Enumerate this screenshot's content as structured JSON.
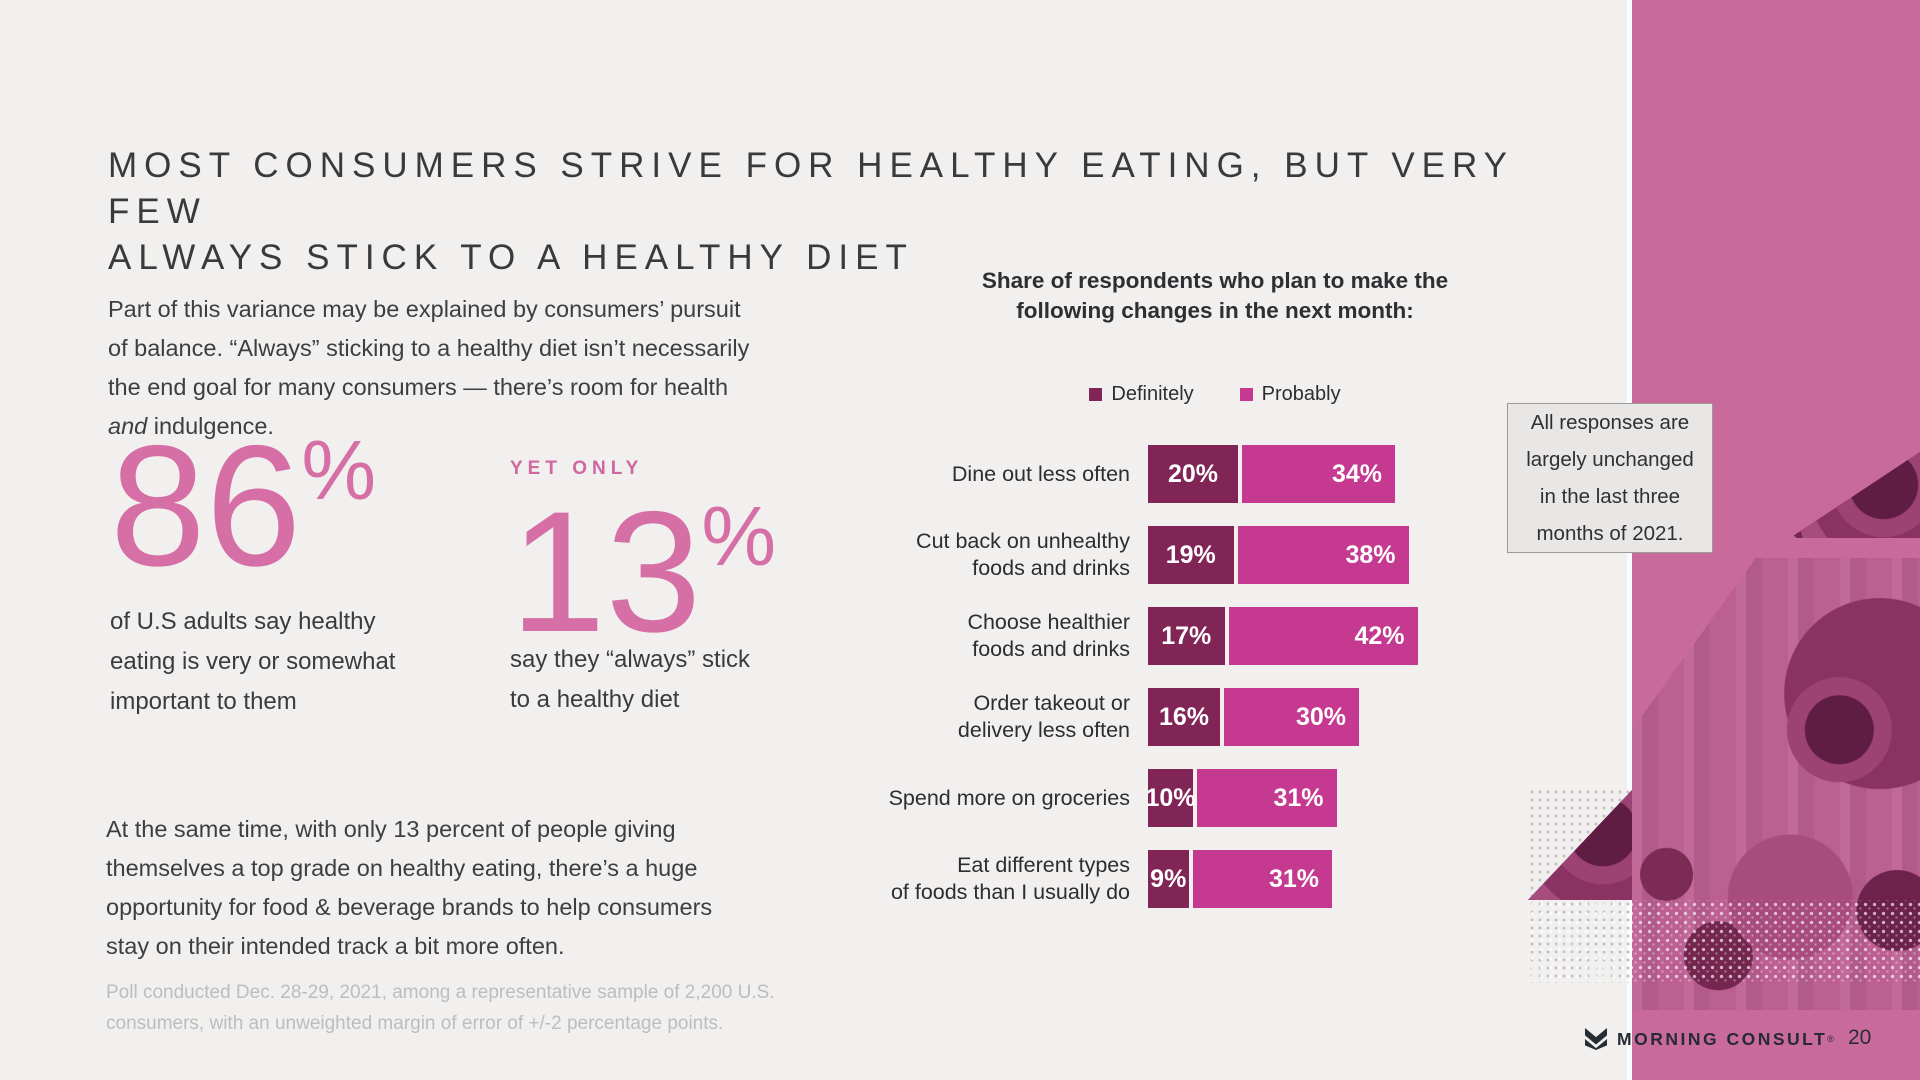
{
  "page": {
    "title_line1": "MOST CONSUMERS STRIVE FOR HEALTHY EATING, BUT VERY FEW",
    "title_line2": "ALWAYS STICK TO A HEALTHY DIET",
    "brand": "MORNING CONSULT",
    "brand_mark": "®",
    "page_number": "20"
  },
  "left_column": {
    "intro_pre": "Part of this variance may be explained by consumers’ pursuit\nof balance. “Always” sticking to a healthy diet isn’t necessarily\nthe end goal for many consumers — there’s room for health\n",
    "intro_italic": "and",
    "intro_post": " indulgence.",
    "closing": "At the same time, with only 13 percent of people giving\nthemselves a top grade on healthy eating, there’s a huge\nopportunity for food & beverage brands to help consumers\nstay on their intended track a bit more often.",
    "footnote": "Poll conducted Dec. 28-29, 2021, among a representative sample of 2,200 U.S.\nconsumers, with an unweighted margin of error of +/-2 percentage points."
  },
  "stats": {
    "stat1": {
      "value": "86",
      "suffix": "%",
      "caption": "of U.S adults say healthy\neating is very or somewhat\nimportant to them"
    },
    "stat2": {
      "kicker": "YET ONLY",
      "value": "13",
      "suffix": "%",
      "caption": "say they “always” stick\nto a healthy diet"
    }
  },
  "chart_data": {
    "type": "bar",
    "orientation": "horizontal-stacked",
    "title": "Share of respondents who plan to make the\nfollowing changes in the next month:",
    "legend": [
      {
        "label": "Definitely",
        "color": "#812556"
      },
      {
        "label": "Probably",
        "color": "#c53a90"
      }
    ],
    "categories": [
      "Dine out less often",
      "Cut back on unhealthy\nfoods and drinks",
      "Choose healthier\nfoods and drinks",
      "Order takeout or\ndelivery less often",
      "Spend more on groceries",
      "Eat different types\nof foods than I usually do"
    ],
    "series": [
      {
        "name": "Definitely",
        "color": "#812556",
        "values": [
          20,
          19,
          17,
          16,
          10,
          9
        ]
      },
      {
        "name": "Probably",
        "color": "#c53a90",
        "values": [
          34,
          38,
          42,
          30,
          31,
          31
        ]
      }
    ],
    "value_suffix": "%",
    "xlim": [
      0,
      60
    ],
    "annotation": "All responses are\nlargely unchanged\nin the last three\nmonths of 2021."
  },
  "colors": {
    "background": "#f1f0ef",
    "sidebar_pink": "#c96a9d",
    "stat_pink": "#d66fa6",
    "bar_dark": "#812556",
    "bar_pink": "#c53a90"
  }
}
